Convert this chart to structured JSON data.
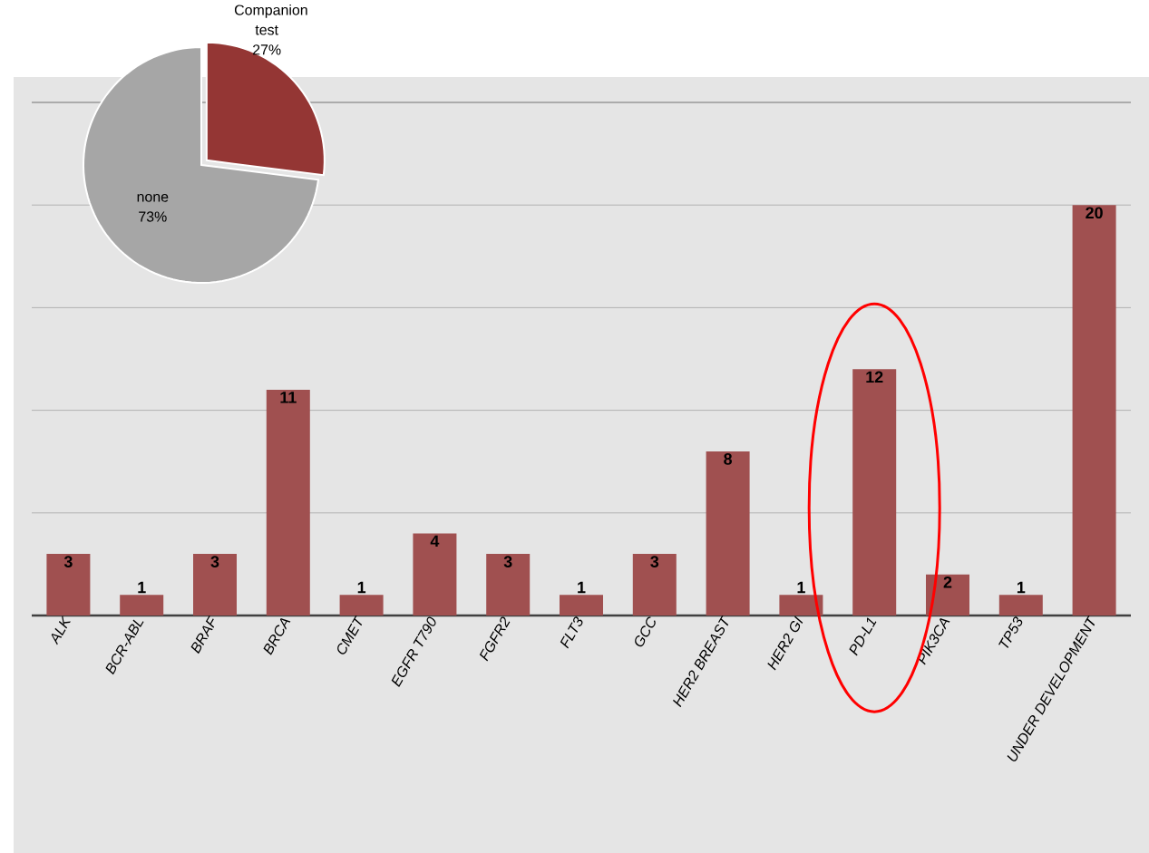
{
  "chart_data": [
    {
      "type": "bar",
      "categories": [
        "ALK",
        "BCR-ABL",
        "BRAF",
        "BRCA",
        "CMET",
        "EGFR T790",
        "FGFR2",
        "FLT3",
        "GCC",
        "HER2 BREAST",
        "HER2 GI",
        "PD-L1",
        "PIK3CA",
        "TP53",
        "UNDER DEVELOPMENT"
      ],
      "values": [
        3,
        1,
        3,
        11,
        1,
        4,
        3,
        1,
        3,
        8,
        1,
        12,
        2,
        1,
        20
      ],
      "color": "#a05050",
      "data_labels": true,
      "tick_labels": "x",
      "grid": "y",
      "ylim": [
        0,
        25
      ]
    },
    {
      "type": "pie",
      "categories": [
        "Companion test",
        "none"
      ],
      "values": [
        27,
        73
      ],
      "colors": [
        "#943634",
        "#a6a6a6"
      ],
      "value_labels": [
        "27%",
        "73%"
      ]
    }
  ]
}
